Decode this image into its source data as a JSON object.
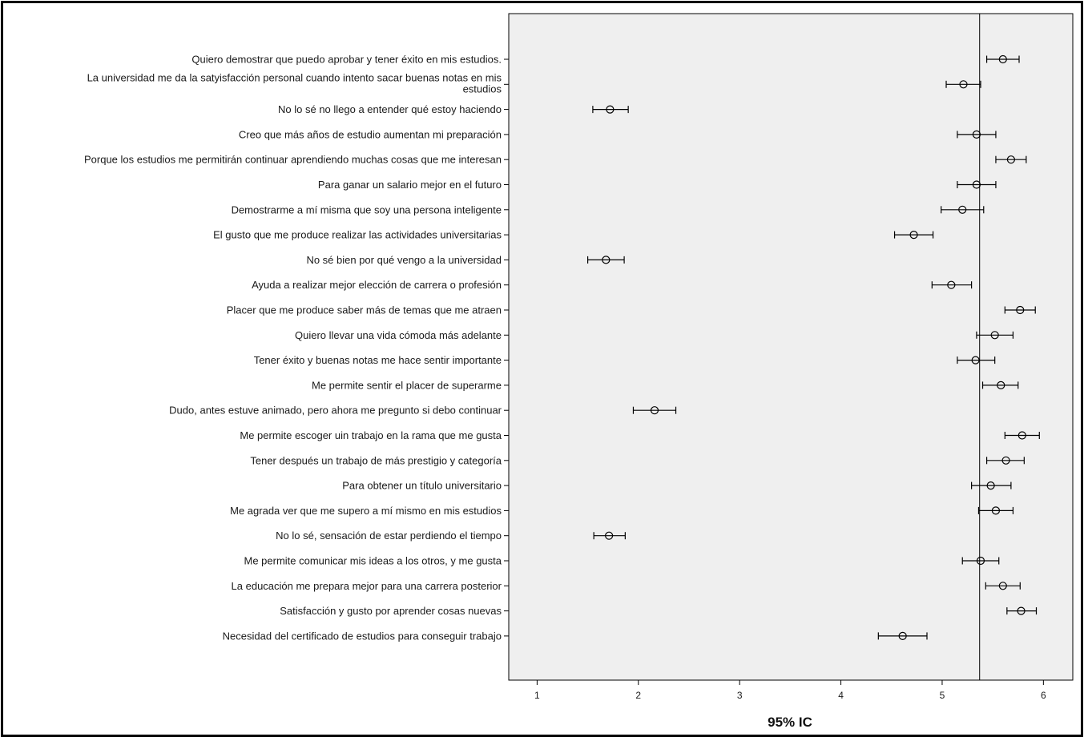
{
  "chart_data": {
    "type": "scatter",
    "subtype": "error-bar (95% CI, horizontal)",
    "xlabel": "95% IC",
    "xlim": [
      0.72,
      6.29
    ],
    "xticks": [
      1,
      2,
      3,
      4,
      5,
      6
    ],
    "reference_line_x": 5.37,
    "grid": false,
    "plot_background": "#efefef",
    "marker_color": "#000000",
    "rows": [
      {
        "label": "Quiero demostrar que puedo aprobar y tener éxito en mis estudios.",
        "mean": 5.6,
        "low": 5.44,
        "high": 5.76
      },
      {
        "label": [
          "La universidad me da la satyisfacción personal cuando intento sacar buenas notas en mis",
          "estudios"
        ],
        "mean": 5.21,
        "low": 5.04,
        "high": 5.38
      },
      {
        "label": "No lo sé no llego a entender qué estoy haciendo",
        "mean": 1.72,
        "low": 1.55,
        "high": 1.9
      },
      {
        "label": "Creo que más años de estudio aumentan mi preparación",
        "mean": 5.34,
        "low": 5.15,
        "high": 5.53
      },
      {
        "label": "Porque los estudios me permitirán continuar aprendiendo muchas cosas que me interesan",
        "mean": 5.68,
        "low": 5.53,
        "high": 5.83
      },
      {
        "label": "Para ganar un salario mejor en el futuro",
        "mean": 5.34,
        "low": 5.15,
        "high": 5.53
      },
      {
        "label": "Demostrarme a mí misma que soy una persona inteligente",
        "mean": 5.2,
        "low": 4.99,
        "high": 5.41
      },
      {
        "label": "El gusto que me produce realizar las actividades universitarias",
        "mean": 4.72,
        "low": 4.53,
        "high": 4.91
      },
      {
        "label": "No sé bien por qué vengo a la universidad",
        "mean": 1.68,
        "low": 1.5,
        "high": 1.86
      },
      {
        "label": "Ayuda a realizar mejor elección de carrera o profesión",
        "mean": 5.09,
        "low": 4.9,
        "high": 5.29
      },
      {
        "label": "Placer que me produce saber más de temas que me atraen",
        "mean": 5.77,
        "low": 5.62,
        "high": 5.92
      },
      {
        "label": "Quiero llevar una vida cómoda más adelante",
        "mean": 5.52,
        "low": 5.34,
        "high": 5.7
      },
      {
        "label": "Tener éxito y buenas notas me hace sentir importante",
        "mean": 5.33,
        "low": 5.15,
        "high": 5.52
      },
      {
        "label": "Me permite sentir el placer de superarme",
        "mean": 5.58,
        "low": 5.4,
        "high": 5.75
      },
      {
        "label": "Dudo, antes estuve animado, pero ahora me pregunto si debo continuar",
        "mean": 2.16,
        "low": 1.95,
        "high": 2.37
      },
      {
        "label": "Me permite escoger uin trabajo en la rama que me gusta",
        "mean": 5.79,
        "low": 5.62,
        "high": 5.96
      },
      {
        "label": "Tener después un trabajo de más prestigio y categoría",
        "mean": 5.63,
        "low": 5.44,
        "high": 5.81
      },
      {
        "label": "Para obtener un título universitario",
        "mean": 5.48,
        "low": 5.29,
        "high": 5.68
      },
      {
        "label": "Me agrada ver  que me supero a mí mismo en mis estudios",
        "mean": 5.53,
        "low": 5.36,
        "high": 5.7
      },
      {
        "label": "No lo sé, sensación de estar perdiendo el tiempo",
        "mean": 1.71,
        "low": 1.56,
        "high": 1.87
      },
      {
        "label": "Me permite comunicar mis ideas a los otros, y me gusta",
        "mean": 5.38,
        "low": 5.2,
        "high": 5.56
      },
      {
        "label": "La educación  me prepara mejor para una carrera posterior",
        "mean": 5.6,
        "low": 5.43,
        "high": 5.77
      },
      {
        "label": "Satisfacción y gusto por aprender cosas nuevas",
        "mean": 5.78,
        "low": 5.64,
        "high": 5.93
      },
      {
        "label": "Necesidad del certificado de estudios para conseguir trabajo",
        "mean": 4.61,
        "low": 4.37,
        "high": 4.85
      }
    ]
  }
}
